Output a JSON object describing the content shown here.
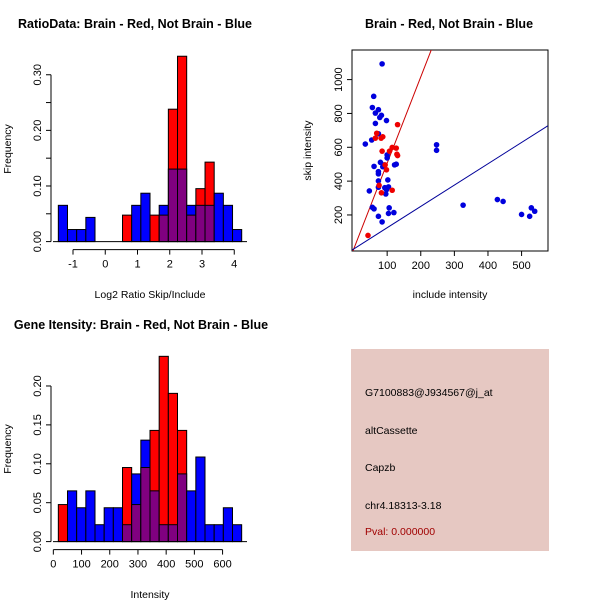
{
  "colors": {
    "brain": "#ff0000",
    "not_brain": "#0000ff",
    "overlap": "#800080",
    "info_bg": "#e6c8c2",
    "pval": "#a00000"
  },
  "chart_data": [
    {
      "type": "bar",
      "title": "RatioData: Brain - Red, Not Brain - Blue",
      "xlabel": "Log2 Ratio Skip/Include",
      "ylabel": "Frequency",
      "bin_start": -1.455,
      "bin_width": 0.2843,
      "xlim": [
        -1.455,
        4.23
      ],
      "ylim": [
        0,
        0.333
      ],
      "x_ticks": [
        -1,
        0,
        1,
        2,
        3,
        4
      ],
      "x_tick_labels": [
        "-1",
        "0",
        "1",
        "2",
        "3",
        "4"
      ],
      "y_ticks": [
        0,
        0.05,
        0.1,
        0.15,
        0.2,
        0.25,
        0.3
      ],
      "y_tick_labels": [
        "0.00",
        "",
        "0.10",
        "",
        "0.20",
        "",
        "0.30"
      ],
      "series": [
        {
          "name": "Brain",
          "color": "red",
          "values": [
            0,
            0,
            0,
            0,
            0,
            0,
            0,
            0.0476,
            0,
            0,
            0.0476,
            0.0476,
            0.2381,
            0.3333,
            0.0476,
            0.0952,
            0.1429,
            0,
            0,
            0
          ]
        },
        {
          "name": "Not Brain",
          "color": "blue",
          "values": [
            0.0652,
            0.0217,
            0.0217,
            0.0435,
            0,
            0,
            0,
            0,
            0.0652,
            0.087,
            0,
            0.0652,
            0.1304,
            0.1304,
            0.0652,
            0.0652,
            0.0652,
            0.087,
            0.0652,
            0.0217
          ]
        }
      ]
    },
    {
      "type": "scatter",
      "title": "Brain - Red, Not Brain - Blue",
      "xlabel": "include intensity",
      "ylabel": "skip intensity",
      "xlim": [
        17,
        557
      ],
      "ylim": [
        31,
        1131
      ],
      "x_ticks": [
        100,
        200,
        300,
        400,
        500
      ],
      "x_tick_labels": [
        "100",
        "200",
        "300",
        "400",
        "500"
      ],
      "y_ticks": [
        200,
        400,
        600,
        800,
        1000
      ],
      "y_tick_labels": [
        "200",
        "400",
        "600",
        "800",
        "1000"
      ],
      "lines": [
        {
          "name": "brain-fit",
          "slope": 5.1,
          "intercept": -4,
          "color": "#cc0000"
        },
        {
          "name": "not-brain-fit",
          "slope": 1.26,
          "intercept": -1.5,
          "color": "#000099"
        }
      ],
      "series": [
        {
          "name": "Not Brain",
          "color": "#0000dd",
          "points": [
            [
              85,
              1093
            ],
            [
              60,
              901
            ],
            [
              56,
              835
            ],
            [
              74,
              822
            ],
            [
              65,
              802
            ],
            [
              83,
              789
            ],
            [
              78,
              776
            ],
            [
              98,
              758
            ],
            [
              65,
              741
            ],
            [
              74,
              680
            ],
            [
              54,
              643
            ],
            [
              35,
              619
            ],
            [
              100,
              555
            ],
            [
              100,
              537
            ],
            [
              61,
              487
            ],
            [
              80,
              511
            ],
            [
              87,
              485
            ],
            [
              91,
              496
            ],
            [
              122,
              496
            ],
            [
              127,
              500
            ],
            [
              74,
              456
            ],
            [
              74,
              443
            ],
            [
              74,
              401
            ],
            [
              102,
              407
            ],
            [
              74,
              364
            ],
            [
              104,
              366
            ],
            [
              93,
              361
            ],
            [
              98,
              350
            ],
            [
              96,
              324
            ],
            [
              47,
              342
            ],
            [
              56,
              245
            ],
            [
              61,
              236
            ],
            [
              106,
              242
            ],
            [
              120,
              214
            ],
            [
              104,
              209
            ],
            [
              74,
              192
            ],
            [
              85,
              159
            ],
            [
              247,
              615
            ],
            [
              247,
              582
            ],
            [
              326,
              258
            ],
            [
              428,
              291
            ],
            [
              445,
              280
            ],
            [
              500,
              203
            ],
            [
              524,
              192
            ],
            [
              529,
              242
            ],
            [
              539,
              222
            ]
          ]
        },
        {
          "name": "Brain",
          "color": "#ee0000",
          "points": [
            [
              43,
              79
            ],
            [
              69,
              683
            ],
            [
              65,
              654
            ],
            [
              87,
              662
            ],
            [
              82,
              654
            ],
            [
              85,
              577
            ],
            [
              131,
              734
            ],
            [
              115,
              599
            ],
            [
              107,
              577
            ],
            [
              127,
              595
            ],
            [
              129,
              559
            ],
            [
              131,
              551
            ],
            [
              76,
              375
            ],
            [
              83,
              331
            ],
            [
              98,
              467
            ],
            [
              115,
              346
            ],
            [
              94,
              496
            ]
          ]
        }
      ]
    },
    {
      "type": "bar",
      "title": "Gene Itensity: Brain - Red, Not Brain - Blue",
      "xlabel": "Intensity",
      "ylabel": "Frequency",
      "bin_start": 17.7,
      "bin_width": 32.5,
      "xlim": [
        17.7,
        667.7
      ],
      "ylim": [
        0,
        0.238
      ],
      "x_ticks": [
        0,
        100,
        200,
        300,
        400,
        500,
        600
      ],
      "x_tick_labels": [
        "0",
        "100",
        "200",
        "300",
        "400",
        "500",
        "600"
      ],
      "y_ticks": [
        0,
        0.05,
        0.1,
        0.15,
        0.2
      ],
      "y_tick_labels": [
        "0.00",
        "0.05",
        "0.10",
        "0.15",
        "0.20"
      ],
      "series": [
        {
          "name": "Brain",
          "color": "red",
          "values": [
            0.0476,
            0,
            0,
            0,
            0,
            0,
            0,
            0.0952,
            0.0476,
            0.0952,
            0.1429,
            0.2381,
            0.1905,
            0.1429,
            0,
            0,
            0,
            0,
            0,
            0
          ]
        },
        {
          "name": "Not Brain",
          "color": "blue",
          "values": [
            0,
            0.0652,
            0.0435,
            0.0652,
            0.0217,
            0.0435,
            0.0435,
            0.0217,
            0.087,
            0.1304,
            0.0652,
            0.0217,
            0.0217,
            0.087,
            0.0652,
            0.1087,
            0.0217,
            0.0217,
            0.0435,
            0.0217
          ]
        }
      ]
    }
  ],
  "info": {
    "probe_id": "G7100883@J934567@j_at",
    "event_type": "altCassette",
    "gene": "Capzb",
    "location": "chr4.18313-3.18",
    "pval": "Pval: 0.000000"
  }
}
